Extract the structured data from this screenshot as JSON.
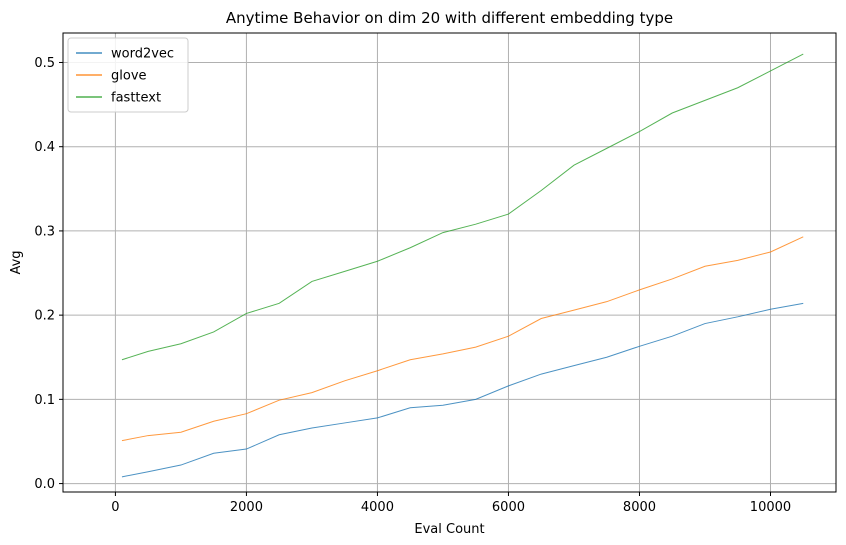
{
  "chart_data": {
    "type": "line",
    "title": "Anytime Behavior on dim 20 with different embedding type",
    "xlabel": "Eval Count",
    "ylabel": "Avg",
    "xlim": [
      -800,
      11000
    ],
    "ylim": [
      -0.01,
      0.535
    ],
    "xticks": [
      0,
      2000,
      4000,
      6000,
      8000,
      10000
    ],
    "xtick_labels": [
      "0",
      "2000",
      "4000",
      "6000",
      "8000",
      "10000"
    ],
    "yticks": [
      0.0,
      0.1,
      0.2,
      0.3,
      0.4,
      0.5
    ],
    "ytick_labels": [
      "0.0",
      "0.1",
      "0.2",
      "0.3",
      "0.4",
      "0.5"
    ],
    "grid": true,
    "legend_position": "top-left",
    "series": [
      {
        "name": "word2vec",
        "color": "#1f77b4",
        "x": [
          100,
          500,
          1000,
          1500,
          2000,
          2500,
          3000,
          3500,
          4000,
          4500,
          5000,
          5500,
          6000,
          6500,
          7000,
          7500,
          8000,
          8500,
          9000,
          9500,
          10000,
          10500
        ],
        "y": [
          0.008,
          0.014,
          0.022,
          0.036,
          0.041,
          0.058,
          0.066,
          0.072,
          0.078,
          0.09,
          0.093,
          0.1,
          0.116,
          0.13,
          0.14,
          0.15,
          0.163,
          0.175,
          0.19,
          0.198,
          0.207,
          0.214
        ]
      },
      {
        "name": "glove",
        "color": "#ff7f0e",
        "x": [
          100,
          500,
          1000,
          1500,
          2000,
          2500,
          3000,
          3500,
          4000,
          4500,
          5000,
          5500,
          6000,
          6500,
          7000,
          7500,
          8000,
          8500,
          9000,
          9500,
          10000,
          10500
        ],
        "y": [
          0.051,
          0.057,
          0.061,
          0.074,
          0.083,
          0.099,
          0.108,
          0.122,
          0.134,
          0.147,
          0.154,
          0.162,
          0.175,
          0.196,
          0.206,
          0.216,
          0.23,
          0.243,
          0.258,
          0.265,
          0.275,
          0.293
        ]
      },
      {
        "name": "fasttext",
        "color": "#2ca02c",
        "x": [
          100,
          500,
          1000,
          1500,
          2000,
          2500,
          3000,
          3500,
          4000,
          4500,
          5000,
          5500,
          6000,
          6500,
          7000,
          7500,
          8000,
          8500,
          9000,
          9500,
          10000,
          10500
        ],
        "y": [
          0.147,
          0.157,
          0.166,
          0.18,
          0.202,
          0.214,
          0.24,
          0.252,
          0.264,
          0.28,
          0.298,
          0.308,
          0.32,
          0.348,
          0.378,
          0.398,
          0.418,
          0.44,
          0.455,
          0.47,
          0.49,
          0.51
        ]
      }
    ]
  }
}
